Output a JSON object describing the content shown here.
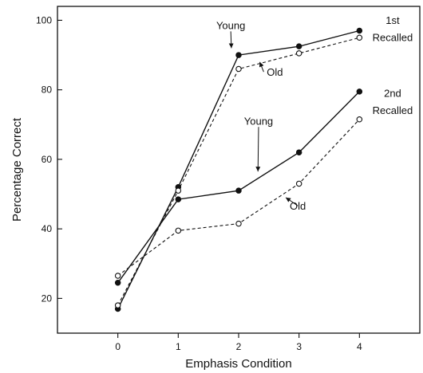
{
  "chart_data": {
    "type": "line",
    "xlabel": "Emphasis Condition",
    "ylabel": "Percentage Correct",
    "x": [
      0,
      1,
      2,
      3,
      4
    ],
    "xlim": [
      -1,
      5
    ],
    "ylim": [
      10,
      104
    ],
    "xticks": [
      "0",
      "1",
      "2",
      "3",
      "4"
    ],
    "yticks": [
      "20",
      "40",
      "60",
      "80",
      "100"
    ],
    "grid": false,
    "legend": "none",
    "series": [
      {
        "group": "1st Recalled",
        "age": "Young",
        "line": "solid",
        "marker": "filled",
        "values": [
          17,
          52,
          90,
          92.5,
          97
        ]
      },
      {
        "group": "1st Recalled",
        "age": "Old",
        "line": "dashed",
        "marker": "open",
        "values": [
          18,
          51,
          86,
          90.5,
          95
        ]
      },
      {
        "group": "2nd Recalled",
        "age": "Young",
        "line": "solid",
        "marker": "filled",
        "values": [
          24.5,
          48.5,
          51,
          62,
          79.5
        ]
      },
      {
        "group": "2nd Recalled",
        "age": "Old",
        "line": "dashed",
        "marker": "open",
        "values": [
          26.5,
          39.5,
          41.5,
          53,
          71.5
        ]
      }
    ],
    "annotations": [
      {
        "text": "Young",
        "x": 1.87,
        "y": 97.5,
        "arrow_to": [
          1.88,
          92
        ]
      },
      {
        "text": "Old",
        "x": 2.6,
        "y": 84,
        "arrow_to": [
          2.35,
          88
        ]
      },
      {
        "text": "1st",
        "x": 4.55,
        "y": 99
      },
      {
        "text": "Recalled",
        "x": 4.55,
        "y": 94
      },
      {
        "text": "Young",
        "x": 2.33,
        "y": 70,
        "arrow_to": [
          2.32,
          56.5
        ]
      },
      {
        "text": "2nd",
        "x": 4.55,
        "y": 78
      },
      {
        "text": "Recalled",
        "x": 4.55,
        "y": 73
      },
      {
        "text": "Old",
        "x": 2.98,
        "y": 45.5,
        "arrow_to": [
          2.78,
          49
        ]
      }
    ]
  }
}
